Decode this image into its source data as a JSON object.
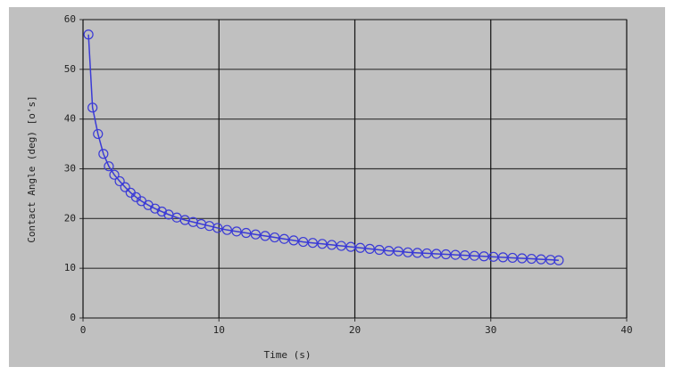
{
  "chart_data": {
    "type": "scatter",
    "xlabel": "Time (s)",
    "ylabel": "Contact Angle (deg) [o's]",
    "xlim": [
      0,
      40
    ],
    "xticks": [
      0,
      10,
      20,
      30,
      40
    ],
    "ylim": [
      0,
      60
    ],
    "yticks": [
      0,
      10,
      20,
      30,
      40,
      50,
      60
    ],
    "grid": true,
    "series": [
      {
        "color": "#3a3ad6",
        "x": [
          0.4,
          0.7,
          1.1,
          1.5,
          1.9,
          2.3,
          2.7,
          3.1,
          3.5,
          3.9,
          4.3,
          4.8,
          5.3,
          5.8,
          6.3,
          6.9,
          7.5,
          8.1,
          8.7,
          9.3,
          9.9,
          10.6,
          11.3,
          12.0,
          12.7,
          13.4,
          14.1,
          14.8,
          15.5,
          16.2,
          16.9,
          17.6,
          18.3,
          19.0,
          19.7,
          20.4,
          21.1,
          21.8,
          22.5,
          23.2,
          23.9,
          24.6,
          25.3,
          26.0,
          26.7,
          27.4,
          28.1,
          28.8,
          29.5,
          30.2,
          30.9,
          31.6,
          32.3,
          33.0,
          33.7,
          34.4,
          35.0
        ],
        "values": [
          57,
          42.3,
          37,
          33,
          30.5,
          28.8,
          27.5,
          26.3,
          25.2,
          24.3,
          23.5,
          22.7,
          22,
          21.4,
          20.8,
          20.2,
          19.7,
          19.3,
          18.9,
          18.5,
          18.1,
          17.7,
          17.4,
          17.1,
          16.8,
          16.5,
          16.2,
          15.9,
          15.6,
          15.3,
          15.1,
          14.9,
          14.7,
          14.5,
          14.3,
          14.1,
          13.9,
          13.7,
          13.5,
          13.4,
          13.2,
          13.1,
          13,
          12.9,
          12.8,
          12.7,
          12.6,
          12.5,
          12.4,
          12.3,
          12.2,
          12.1,
          12,
          11.9,
          11.8,
          11.7,
          11.6
        ]
      }
    ]
  }
}
